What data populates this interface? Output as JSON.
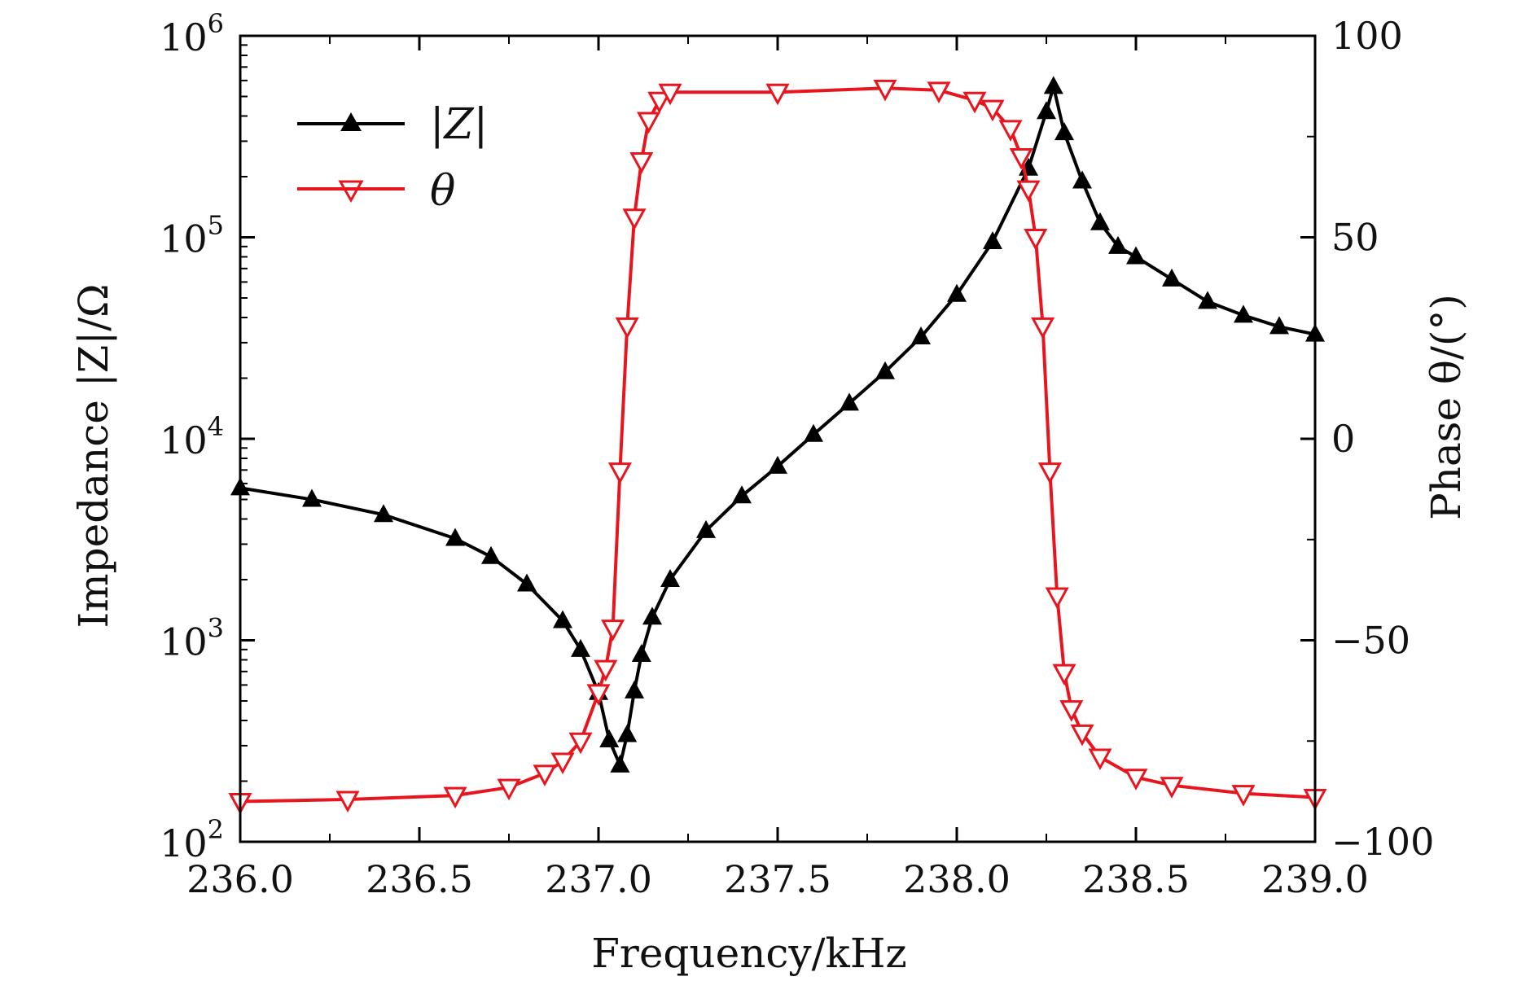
{
  "chart_data": {
    "type": "line",
    "title": "",
    "xlabel": "Frequency/kHz",
    "ylabel_left": "Impedance |Z|/Ω",
    "ylabel_right": "Phase θ/(°)",
    "xlim": [
      236.0,
      239.0
    ],
    "ylim_left": [
      100,
      1000000
    ],
    "yscale_left": "log",
    "ylim_right": [
      -100,
      100
    ],
    "grid": false,
    "legend_position": "top-left",
    "x_ticks": [
      236.0,
      236.5,
      237.0,
      237.5,
      238.0,
      238.5,
      239.0
    ],
    "x_tick_labels": [
      "236.0",
      "236.5",
      "237.0",
      "237.5",
      "238.0",
      "238.5",
      "239.0"
    ],
    "y_left_ticks": [
      {
        "value": 100,
        "base": "10",
        "exp": "2"
      },
      {
        "value": 1000,
        "base": "10",
        "exp": "3"
      },
      {
        "value": 10000,
        "base": "10",
        "exp": "4"
      },
      {
        "value": 100000,
        "base": "10",
        "exp": "5"
      },
      {
        "value": 1000000,
        "base": "10",
        "exp": "6"
      }
    ],
    "y_right_ticks": [
      {
        "value": -100,
        "label": "−100"
      },
      {
        "value": -50,
        "label": "−50"
      },
      {
        "value": 0,
        "label": "0"
      },
      {
        "value": 50,
        "label": "50"
      },
      {
        "value": 100,
        "label": "100"
      }
    ],
    "series": [
      {
        "name": "|Z|",
        "axis": "left",
        "color": "#000000",
        "marker": "triangle-up",
        "x": [
          236.0,
          236.2,
          236.4,
          236.6,
          236.7,
          236.8,
          236.9,
          236.95,
          237.0,
          237.03,
          237.06,
          237.08,
          237.1,
          237.12,
          237.15,
          237.2,
          237.3,
          237.4,
          237.5,
          237.6,
          237.7,
          237.8,
          237.9,
          238.0,
          238.1,
          238.2,
          238.25,
          238.27,
          238.3,
          238.35,
          238.4,
          238.45,
          238.5,
          238.6,
          238.7,
          238.8,
          238.9,
          239.0
        ],
        "y": [
          5700,
          5000,
          4200,
          3200,
          2600,
          1900,
          1250,
          900,
          550,
          320,
          240,
          340,
          560,
          850,
          1300,
          2000,
          3500,
          5200,
          7300,
          10500,
          15000,
          21500,
          32000,
          52000,
          95000,
          220000,
          420000,
          560000,
          330000,
          190000,
          118000,
          90000,
          80000,
          62000,
          48000,
          41000,
          36000,
          33000
        ]
      },
      {
        "name": "θ",
        "axis": "right",
        "color": "#e8141e",
        "marker": "triangle-down",
        "x": [
          236.0,
          236.3,
          236.6,
          236.75,
          236.85,
          236.9,
          236.95,
          237.0,
          237.02,
          237.04,
          237.06,
          237.08,
          237.1,
          237.12,
          237.14,
          237.17,
          237.2,
          237.5,
          237.8,
          237.95,
          238.05,
          238.1,
          238.15,
          238.18,
          238.2,
          238.22,
          238.24,
          238.26,
          238.28,
          238.3,
          238.32,
          238.35,
          238.4,
          238.5,
          238.6,
          238.8,
          239.0
        ],
        "y": [
          -90,
          -89.5,
          -88.5,
          -86.5,
          -83,
          -80,
          -75,
          -63,
          -57,
          -47,
          -8,
          28,
          55,
          69,
          79,
          84,
          86,
          86,
          87,
          86.5,
          84,
          82,
          77,
          70,
          62,
          50,
          28,
          -8,
          -39,
          -58,
          -67,
          -73,
          -79,
          -84,
          -86,
          -88,
          -89
        ]
      }
    ]
  }
}
